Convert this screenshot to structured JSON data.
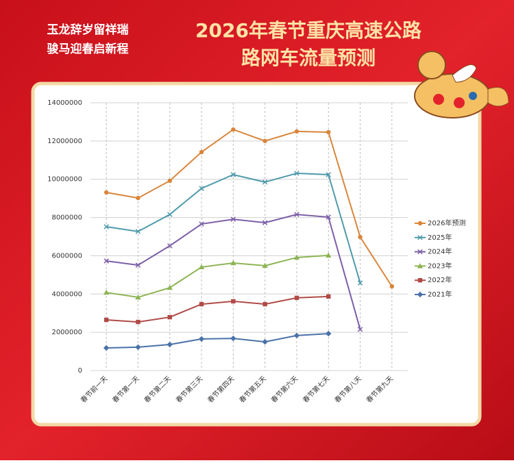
{
  "slogan": [
    "玉龙辞岁留祥瑞",
    "骏马迎春启新程"
  ],
  "chart_data": {
    "type": "line",
    "title": [
      "2026年春节重庆高速公路",
      "路网车流量预测"
    ],
    "categories": [
      "春节前一天",
      "春节第一天",
      "春节第二天",
      "春节第三天",
      "春节第四天",
      "春节第五天",
      "春节第六天",
      "春节第七天",
      "春节第八天",
      "春节第九天"
    ],
    "series": [
      {
        "name": "2026年预测",
        "color": "#d9853b",
        "marker": "circle",
        "values": [
          9310000,
          9020000,
          9920000,
          11420000,
          12600000,
          12000000,
          12500000,
          12460000,
          6980000,
          4400000
        ]
      },
      {
        "name": "2025年",
        "color": "#4e9aab",
        "marker": "x",
        "values": [
          7520000,
          7270000,
          8160000,
          9520000,
          10240000,
          9850000,
          10310000,
          10240000,
          4580000,
          null
        ]
      },
      {
        "name": "2024年",
        "color": "#7b5ea7",
        "marker": "x",
        "values": [
          5730000,
          5510000,
          6520000,
          7660000,
          7910000,
          7730000,
          8160000,
          8020000,
          2150000,
          null
        ]
      },
      {
        "name": "2023年",
        "color": "#8db454",
        "marker": "triangle",
        "values": [
          4080000,
          3830000,
          4330000,
          5410000,
          5620000,
          5480000,
          5910000,
          6020000,
          null,
          null
        ]
      },
      {
        "name": "2022年",
        "color": "#b04a46",
        "marker": "square",
        "values": [
          2650000,
          2540000,
          2790000,
          3470000,
          3620000,
          3470000,
          3800000,
          3870000,
          null,
          null
        ]
      },
      {
        "name": "2021年",
        "color": "#4a72a8",
        "marker": "diamond",
        "values": [
          1180000,
          1220000,
          1360000,
          1650000,
          1680000,
          1500000,
          1830000,
          1930000,
          null,
          null
        ]
      }
    ],
    "ylim": [
      0,
      14000000
    ],
    "yticks": [
      0,
      2000000,
      4000000,
      6000000,
      8000000,
      10000000,
      12000000,
      14000000
    ],
    "grid": true,
    "legend": "right"
  }
}
